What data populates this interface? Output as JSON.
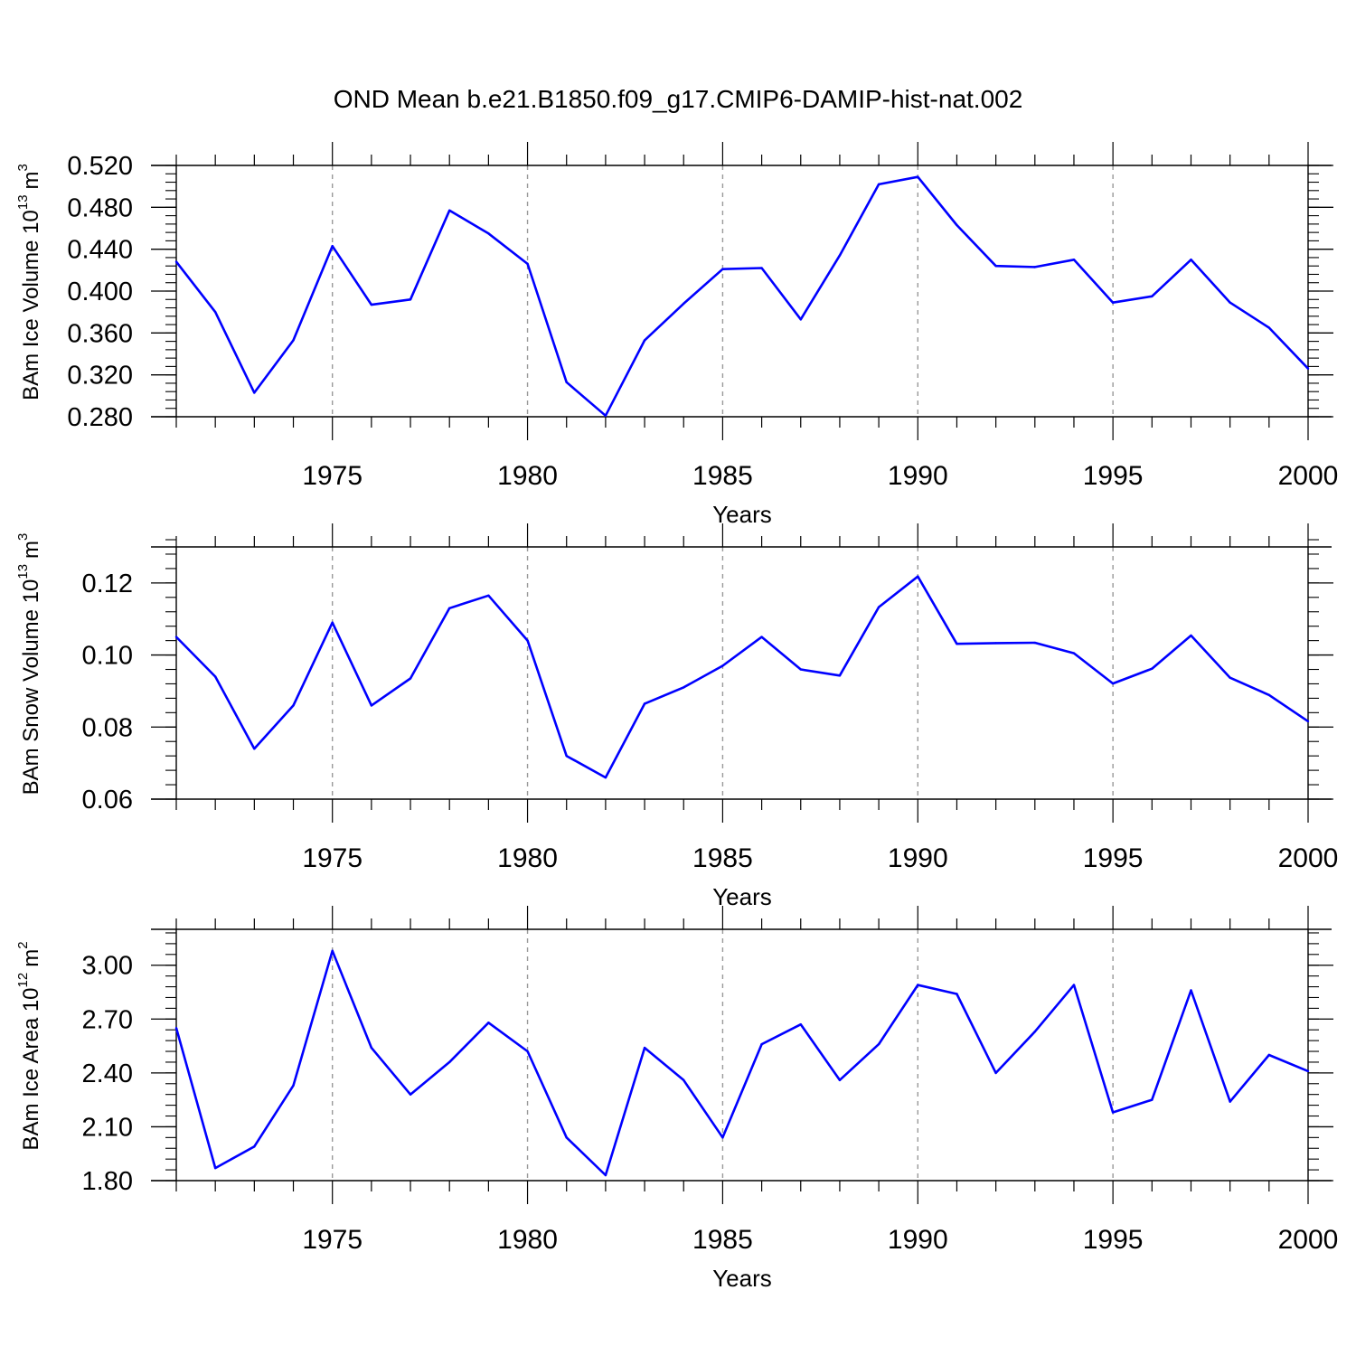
{
  "title": "OND Mean b.e21.B1850.f09_g17.CMIP6-DAMIP-hist-nat.002",
  "colors": {
    "line": "#0000ff",
    "axis": "#000000",
    "grid": "#999999"
  },
  "chart_data": [
    {
      "type": "line",
      "ylabel_main": "BAm Ice Volume 10",
      "ylabel_exp": "13",
      "ylabel_unit": "m",
      "ylabel_unit_exp": "3",
      "xlabel": "Years",
      "xlim": [
        1971,
        2000
      ],
      "ylim": [
        0.28,
        0.52
      ],
      "yticks": [
        "0.280",
        "0.320",
        "0.360",
        "0.400",
        "0.440",
        "0.480",
        "0.520"
      ],
      "ytick_values": [
        0.28,
        0.32,
        0.36,
        0.4,
        0.44,
        0.48,
        0.52
      ],
      "yminor_step": 0.008,
      "xticks": [
        "1975",
        "1980",
        "1985",
        "1990",
        "1995",
        "2000"
      ],
      "xtick_values": [
        1975,
        1980,
        1985,
        1990,
        1995,
        2000
      ],
      "x": [
        1971,
        1972,
        1973,
        1974,
        1975,
        1976,
        1977,
        1978,
        1979,
        1980,
        1981,
        1982,
        1983,
        1984,
        1985,
        1986,
        1987,
        1988,
        1989,
        1990,
        1991,
        1992,
        1993,
        1994,
        1995,
        1996,
        1997,
        1998,
        1999,
        2000
      ],
      "values": [
        0.428,
        0.38,
        0.303,
        0.353,
        0.443,
        0.387,
        0.392,
        0.477,
        0.455,
        0.426,
        0.313,
        0.281,
        0.353,
        0.388,
        0.421,
        0.422,
        0.373,
        0.434,
        0.502,
        0.509,
        0.463,
        0.424,
        0.423,
        0.43,
        0.389,
        0.395,
        0.43,
        0.389,
        0.365,
        0.326
      ]
    },
    {
      "type": "line",
      "ylabel_main": "BAm Snow Volume 10",
      "ylabel_exp": "13",
      "ylabel_unit": "m",
      "ylabel_unit_exp": "3",
      "xlabel": "Years",
      "xlim": [
        1971,
        2000
      ],
      "ylim": [
        0.06,
        0.13
      ],
      "yticks": [
        "0.06",
        "0.08",
        "0.10",
        "0.12"
      ],
      "ytick_values": [
        0.06,
        0.08,
        0.1,
        0.12
      ],
      "yminor_step": 0.004,
      "xticks": [
        "1975",
        "1980",
        "1985",
        "1990",
        "1995",
        "2000"
      ],
      "xtick_values": [
        1975,
        1980,
        1985,
        1990,
        1995,
        2000
      ],
      "x": [
        1971,
        1972,
        1973,
        1974,
        1975,
        1976,
        1977,
        1978,
        1979,
        1980,
        1981,
        1982,
        1983,
        1984,
        1985,
        1986,
        1987,
        1988,
        1989,
        1990,
        1991,
        1992,
        1993,
        1994,
        1995,
        1996,
        1997,
        1998,
        1999,
        2000
      ],
      "values": [
        0.105,
        0.094,
        0.074,
        0.086,
        0.109,
        0.086,
        0.0935,
        0.113,
        0.1165,
        0.104,
        0.072,
        0.066,
        0.0865,
        0.091,
        0.097,
        0.105,
        0.096,
        0.0943,
        0.1133,
        0.1218,
        0.1031,
        0.1033,
        0.1034,
        0.1005,
        0.0921,
        0.0962,
        0.1054,
        0.0937,
        0.0889,
        0.0816
      ]
    },
    {
      "type": "line",
      "ylabel_main": "BAm Ice Area 10",
      "ylabel_exp": "12",
      "ylabel_unit": "m",
      "ylabel_unit_exp": "2",
      "xlabel": "Years",
      "xlim": [
        1971,
        2000
      ],
      "ylim": [
        1.8,
        3.2
      ],
      "yticks": [
        "1.80",
        "2.10",
        "2.40",
        "2.70",
        "3.00"
      ],
      "ytick_values": [
        1.8,
        2.1,
        2.4,
        2.7,
        3.0
      ],
      "yminor_step": 0.06,
      "xticks": [
        "1975",
        "1980",
        "1985",
        "1990",
        "1995",
        "2000"
      ],
      "xtick_values": [
        1975,
        1980,
        1985,
        1990,
        1995,
        2000
      ],
      "x": [
        1971,
        1972,
        1973,
        1974,
        1975,
        1976,
        1977,
        1978,
        1979,
        1980,
        1981,
        1982,
        1983,
        1984,
        1985,
        1986,
        1987,
        1988,
        1989,
        1990,
        1991,
        1992,
        1993,
        1994,
        1995,
        1996,
        1997,
        1998,
        1999,
        2000
      ],
      "values": [
        2.65,
        1.87,
        1.99,
        2.33,
        3.08,
        2.54,
        2.28,
        2.46,
        2.68,
        2.52,
        2.04,
        1.83,
        2.54,
        2.36,
        2.04,
        2.56,
        2.67,
        2.36,
        2.56,
        2.89,
        2.84,
        2.4,
        2.63,
        2.89,
        2.18,
        2.25,
        2.86,
        2.24,
        2.5,
        2.41
      ]
    }
  ]
}
